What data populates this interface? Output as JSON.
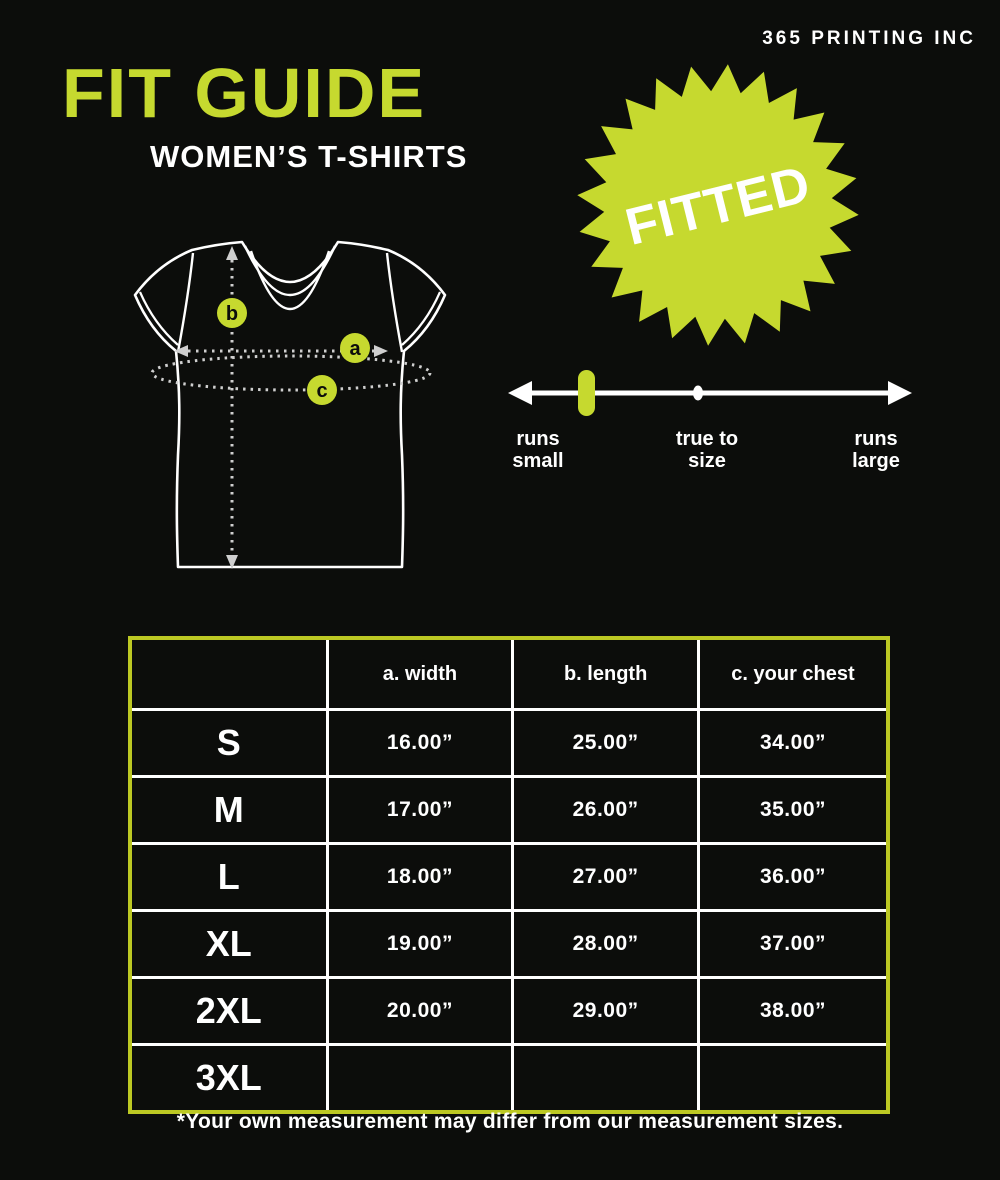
{
  "colors": {
    "background": "#0c0d0b",
    "accent_green": "#c6d92f",
    "table_border_green": "#bcc823",
    "text_white": "#ffffff",
    "dotted_line_grey": "#cfcfcf",
    "marker_letter_dark": "#0c0d0b"
  },
  "header": {
    "brand": "365 PRINTING INC"
  },
  "title": {
    "main": "FIT GUIDE",
    "subtitle": "WOMEN’S T-SHIRTS"
  },
  "badge": {
    "label": "FITTED"
  },
  "diagram": {
    "marker_a": "a",
    "marker_b": "b",
    "marker_c": "c"
  },
  "fit_scale": {
    "left_label": "runs\nsmall",
    "center_label": "true to\nsize",
    "right_label": "runs\nlarge",
    "marker_position": "runs small"
  },
  "size_table": {
    "headers": [
      "",
      "a. width",
      "b. length",
      "c. your chest"
    ],
    "rows": [
      {
        "size": "S",
        "width": "16.00”",
        "length": "25.00”",
        "chest": "34.00”"
      },
      {
        "size": "M",
        "width": "17.00”",
        "length": "26.00”",
        "chest": "35.00”"
      },
      {
        "size": "L",
        "width": "18.00”",
        "length": "27.00”",
        "chest": "36.00”"
      },
      {
        "size": "XL",
        "width": "19.00”",
        "length": "28.00”",
        "chest": "37.00”"
      },
      {
        "size": "2XL",
        "width": "20.00”",
        "length": "29.00”",
        "chest": "38.00”"
      },
      {
        "size": "3XL",
        "width": "",
        "length": "",
        "chest": ""
      }
    ]
  },
  "footnote": "*Your own measurement may differ from our measurement sizes."
}
